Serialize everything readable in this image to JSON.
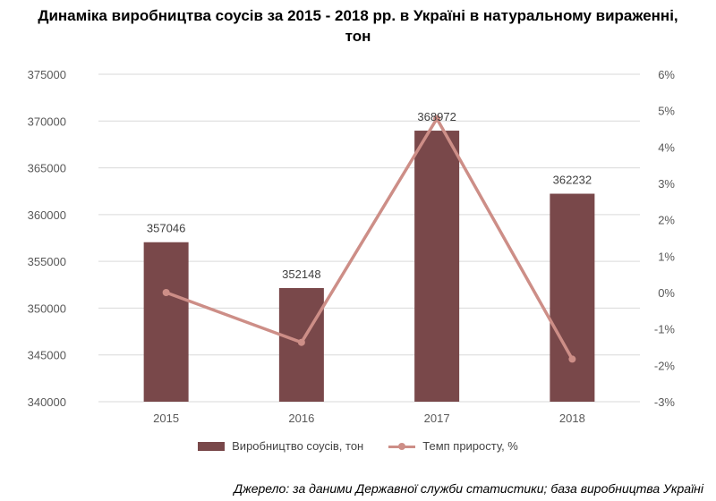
{
  "title_line1": "Динаміка виробництва соусів за 2015 - 2018 рр. в Україні в натуральному вираженні,",
  "title_line2": "тон",
  "source": "Джерело: за даними Державної служби статистики; база виробництва Україні",
  "colors": {
    "bar": "#79484a",
    "line": "#cd8e87",
    "grid": "#d9d9d9",
    "tick_text": "#595959"
  },
  "chart_data": {
    "type": "bar",
    "categories": [
      "2015",
      "2016",
      "2017",
      "2018"
    ],
    "series": [
      {
        "name": "Виробництво соусів, тон",
        "type": "bar",
        "axis": "left",
        "values": [
          357046,
          352148,
          368972,
          362232
        ]
      },
      {
        "name": "Темп приросту, %",
        "type": "line",
        "axis": "right",
        "values": [
          0.0,
          -1.37,
          4.78,
          -1.83
        ]
      }
    ],
    "ylim_left": [
      340000,
      375000
    ],
    "yticks_left": [
      "340000",
      "345000",
      "350000",
      "355000",
      "360000",
      "365000",
      "370000",
      "375000"
    ],
    "ylim_right": [
      -3,
      6
    ],
    "yticks_right": [
      "-3%",
      "-2%",
      "-1%",
      "0%",
      "1%",
      "2%",
      "3%",
      "4%",
      "5%",
      "6%"
    ],
    "data_labels": [
      "357046",
      "352148",
      "368972",
      "362232"
    ],
    "grid": true,
    "legend_position": "bottom"
  }
}
